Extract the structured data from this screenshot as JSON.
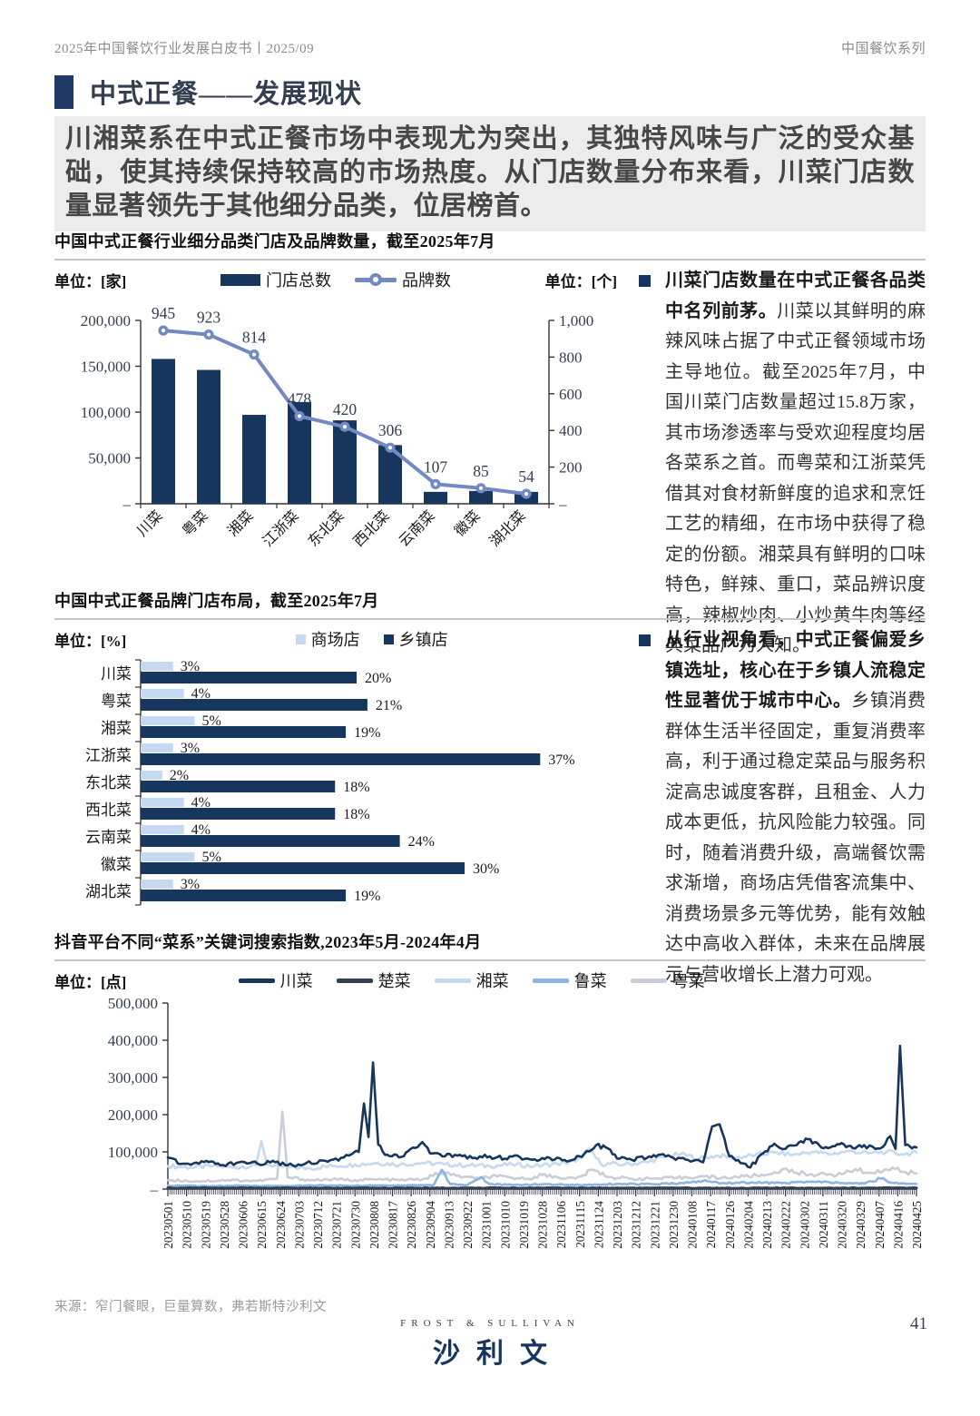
{
  "header": {
    "doc_title": "2025年中国餐饮行业发展白皮书丨2025/09",
    "series": "中国餐饮系列"
  },
  "section": {
    "title": "中式正餐——发展现状",
    "highlight": "川湘菜系在中式正餐市场中表现尤为突出，其独特风味与广泛的受众基础，使其持续保持较高的市场热度。从门店数量分布来看，川菜门店数量显著领先于其他细分品类，位居榜首。"
  },
  "bullets": [
    {
      "bold": "川菜门店数量在中式正餐各品类中名列前茅。",
      "body": "川菜以其鲜明的麻辣风味占据了中式正餐领域市场主导地位。截至2025年7月，中国川菜门店数量超过15.8万家，其市场渗透率与受欢迎程度均居各菜系之首。而粤菜和江浙菜凭借其对食材新鲜度的追求和烹饪工艺的精细，在市场中获得了稳定的份额。湘菜具有鲜明的口味特色，鲜辣、重口，菜品辨识度高，辣椒炒肉、小炒黄牛肉等经典菜品广为人知。"
    },
    {
      "bold": "从行业视角看，中式正餐偏爱乡镇选址，核心在于乡镇人流稳定性显著优于城市中心。",
      "body": "乡镇消费群体生活半径固定，重复消费率高，利于通过稳定菜品与服务积淀高忠诚度客群，且租金、人力成本更低，抗风险能力较强。同时，随着消费升级，高端餐饮需求渐增，商场店凭借客流集中、消费场景多元等优势，能有效触达中高收入群体，未来在品牌展示与营收增长上潜力可观。"
    }
  ],
  "chart_data": [
    {
      "type": "bar",
      "title": "中国中式正餐行业细分品类门店及品牌数量，截至2025年7月",
      "unit_left": "单位：[家]",
      "unit_right": "单位：[个]",
      "legend": [
        {
          "label": "门店总数",
          "color": "#17365d"
        },
        {
          "label": "品牌数",
          "color": "#7289c4"
        }
      ],
      "categories": [
        "川菜",
        "粤菜",
        "湘菜",
        "江浙菜",
        "东北菜",
        "西北菜",
        "云南菜",
        "徽菜",
        "湖北菜"
      ],
      "series": [
        {
          "name": "门店总数",
          "axis": "left",
          "values": [
            158000,
            146000,
            97000,
            111000,
            91000,
            64000,
            13000,
            14000,
            13000
          ]
        },
        {
          "name": "品牌数",
          "axis": "right",
          "values": [
            945,
            923,
            814,
            478,
            420,
            306,
            107,
            85,
            54
          ]
        }
      ],
      "y_left": {
        "min": 0,
        "max": 200000,
        "tick_labels": [
          "–",
          "50,000",
          "100,000",
          "150,000",
          "200,000"
        ]
      },
      "y_right": {
        "min": 0,
        "max": 1000,
        "tick_labels": [
          "–",
          "200",
          "400",
          "600",
          "800",
          "1,000"
        ]
      }
    },
    {
      "type": "bar",
      "title": "中国中式正餐品牌门店布局，截至2025年7月",
      "unit": "单位：[%]",
      "legend": [
        {
          "label": "商场店",
          "color": "#c5d9f1"
        },
        {
          "label": "乡镇店",
          "color": "#17365d"
        }
      ],
      "categories": [
        "川菜",
        "粤菜",
        "湘菜",
        "江浙菜",
        "东北菜",
        "西北菜",
        "云南菜",
        "徽菜",
        "湖北菜"
      ],
      "series": [
        {
          "name": "商场店",
          "values": [
            3,
            4,
            5,
            3,
            2,
            4,
            4,
            5,
            3
          ]
        },
        {
          "name": "乡镇店",
          "values": [
            20,
            21,
            19,
            37,
            18,
            18,
            24,
            30,
            19
          ]
        }
      ],
      "xlim": [
        0,
        40
      ]
    },
    {
      "type": "line",
      "title": "抖音平台不同“菜系”关键词搜索指数,2023年5月-2024年4月",
      "unit": "单位：[点]",
      "ylim": [
        0,
        500000
      ],
      "y_tick_labels": [
        "–",
        "100,000",
        "200,000",
        "300,000",
        "400,000",
        "500,000"
      ],
      "x_labels": [
        "20230501",
        "20230510",
        "20230519",
        "20230528",
        "20230606",
        "20230615",
        "20230624",
        "20230703",
        "20230712",
        "20230721",
        "20230730",
        "20230808",
        "20230817",
        "20230826",
        "20230904",
        "20230913",
        "20230922",
        "20231001",
        "20231010",
        "20231019",
        "20231028",
        "20231106",
        "20231115",
        "20231124",
        "20231203",
        "20231212",
        "20231221",
        "20231230",
        "20240108",
        "20240117",
        "20240126",
        "20240204",
        "20240213",
        "20240222",
        "20240302",
        "20240311",
        "20240320",
        "20240329",
        "20240407",
        "20240416",
        "20240425"
      ],
      "legend": [
        {
          "label": "川菜",
          "color": "#17365d"
        },
        {
          "label": "楚菜",
          "color": "#333f50"
        },
        {
          "label": "湘菜",
          "color": "#c5d9f1"
        },
        {
          "label": "鲁菜",
          "color": "#8db4e2"
        },
        {
          "label": "粤菜",
          "color": "#c9ced6"
        }
      ],
      "series": [
        {
          "name": "川菜",
          "color": "#17365d",
          "width": 2.6,
          "z": 5,
          "points": [
            [
              0,
              85000
            ],
            [
              0.02,
              68000
            ],
            [
              0.045,
              75000
            ],
            [
              0.07,
              64000
            ],
            [
              0.095,
              72000
            ],
            [
              0.12,
              68000
            ],
            [
              0.14,
              76000
            ],
            [
              0.16,
              64000
            ],
            [
              0.185,
              70000
            ],
            [
              0.21,
              76000
            ],
            [
              0.235,
              85000
            ],
            [
              0.255,
              100000
            ],
            [
              0.262,
              230000
            ],
            [
              0.268,
              140000
            ],
            [
              0.274,
              340000
            ],
            [
              0.281,
              120000
            ],
            [
              0.29,
              92000
            ],
            [
              0.315,
              88000
            ],
            [
              0.34,
              126000
            ],
            [
              0.35,
              96000
            ],
            [
              0.37,
              88000
            ],
            [
              0.39,
              92000
            ],
            [
              0.41,
              84000
            ],
            [
              0.43,
              88000
            ],
            [
              0.45,
              82000
            ],
            [
              0.47,
              86000
            ],
            [
              0.49,
              80000
            ],
            [
              0.51,
              84000
            ],
            [
              0.53,
              78000
            ],
            [
              0.55,
              88000
            ],
            [
              0.572,
              118000
            ],
            [
              0.585,
              112000
            ],
            [
              0.6,
              82000
            ],
            [
              0.62,
              78000
            ],
            [
              0.64,
              84000
            ],
            [
              0.655,
              92000
            ],
            [
              0.675,
              84000
            ],
            [
              0.695,
              78000
            ],
            [
              0.715,
              72000
            ],
            [
              0.727,
              168000
            ],
            [
              0.737,
              174000
            ],
            [
              0.75,
              88000
            ],
            [
              0.765,
              70000
            ],
            [
              0.778,
              58000
            ],
            [
              0.795,
              96000
            ],
            [
              0.81,
              122000
            ],
            [
              0.825,
              108000
            ],
            [
              0.84,
              118000
            ],
            [
              0.855,
              134000
            ],
            [
              0.87,
              118000
            ],
            [
              0.885,
              112000
            ],
            [
              0.9,
              124000
            ],
            [
              0.915,
              110000
            ],
            [
              0.93,
              118000
            ],
            [
              0.945,
              108000
            ],
            [
              0.958,
              120000
            ],
            [
              0.965,
              142000
            ],
            [
              0.972,
              108000
            ],
            [
              0.978,
              385000
            ],
            [
              0.985,
              118000
            ],
            [
              1,
              112000
            ]
          ]
        },
        {
          "name": "楚菜",
          "color": "#333f50",
          "width": 3,
          "z": 4,
          "points": [
            [
              0,
              3000
            ],
            [
              0.25,
              2600
            ],
            [
              0.5,
              3000
            ],
            [
              0.75,
              2600
            ],
            [
              1,
              3000
            ]
          ]
        },
        {
          "name": "湘菜",
          "color": "#c5d9f1",
          "width": 2.6,
          "z": 1,
          "points": [
            [
              0,
              62000
            ],
            [
              0.03,
              58000
            ],
            [
              0.06,
              62000
            ],
            [
              0.09,
              58000
            ],
            [
              0.118,
              64000
            ],
            [
              0.125,
              128000
            ],
            [
              0.133,
              66000
            ],
            [
              0.16,
              58000
            ],
            [
              0.19,
              56000
            ],
            [
              0.22,
              62000
            ],
            [
              0.25,
              66000
            ],
            [
              0.28,
              70000
            ],
            [
              0.31,
              66000
            ],
            [
              0.34,
              70000
            ],
            [
              0.37,
              66000
            ],
            [
              0.4,
              64000
            ],
            [
              0.43,
              62000
            ],
            [
              0.46,
              66000
            ],
            [
              0.49,
              62000
            ],
            [
              0.52,
              68000
            ],
            [
              0.545,
              74000
            ],
            [
              0.563,
              108000
            ],
            [
              0.578,
              68000
            ],
            [
              0.61,
              66000
            ],
            [
              0.64,
              72000
            ],
            [
              0.665,
              88000
            ],
            [
              0.685,
              94000
            ],
            [
              0.71,
              82000
            ],
            [
              0.735,
              90000
            ],
            [
              0.76,
              84000
            ],
            [
              0.785,
              92000
            ],
            [
              0.81,
              98000
            ],
            [
              0.835,
              92000
            ],
            [
              0.86,
              100000
            ],
            [
              0.885,
              94000
            ],
            [
              0.91,
              102000
            ],
            [
              0.935,
              96000
            ],
            [
              0.96,
              100000
            ],
            [
              0.98,
              94000
            ],
            [
              1,
              98000
            ]
          ]
        },
        {
          "name": "鲁菜",
          "color": "#8db4e2",
          "width": 2.6,
          "z": 3,
          "points": [
            [
              0,
              10000
            ],
            [
              0.05,
              8000
            ],
            [
              0.1,
              9000
            ],
            [
              0.15,
              8000
            ],
            [
              0.2,
              10000
            ],
            [
              0.25,
              9000
            ],
            [
              0.3,
              10000
            ],
            [
              0.355,
              11000
            ],
            [
              0.366,
              52000
            ],
            [
              0.377,
              14000
            ],
            [
              0.4,
              11000
            ],
            [
              0.418,
              32000
            ],
            [
              0.43,
              13000
            ],
            [
              0.46,
              11000
            ],
            [
              0.5,
              13000
            ],
            [
              0.55,
              11000
            ],
            [
              0.6,
              14000
            ],
            [
              0.65,
              13000
            ],
            [
              0.69,
              16000
            ],
            [
              0.715,
              22000
            ],
            [
              0.74,
              16000
            ],
            [
              0.78,
              18000
            ],
            [
              0.82,
              16000
            ],
            [
              0.86,
              20000
            ],
            [
              0.9,
              16000
            ],
            [
              0.93,
              15000
            ],
            [
              0.952,
              28000
            ],
            [
              0.97,
              16000
            ],
            [
              1,
              14000
            ]
          ]
        },
        {
          "name": "粤菜",
          "color": "#c9ced6",
          "width": 2.6,
          "z": 2,
          "points": [
            [
              0,
              24000
            ],
            [
              0.04,
              21000
            ],
            [
              0.08,
              24000
            ],
            [
              0.12,
              22000
            ],
            [
              0.146,
              28000
            ],
            [
              0.153,
              208000
            ],
            [
              0.16,
              32000
            ],
            [
              0.19,
              24000
            ],
            [
              0.22,
              26000
            ],
            [
              0.25,
              24000
            ],
            [
              0.28,
              26000
            ],
            [
              0.31,
              24000
            ],
            [
              0.34,
              26000
            ],
            [
              0.365,
              44000
            ],
            [
              0.385,
              36000
            ],
            [
              0.41,
              28000
            ],
            [
              0.44,
              34000
            ],
            [
              0.46,
              30000
            ],
            [
              0.48,
              28000
            ],
            [
              0.5,
              38000
            ],
            [
              0.52,
              32000
            ],
            [
              0.545,
              28000
            ],
            [
              0.568,
              52000
            ],
            [
              0.59,
              32000
            ],
            [
              0.62,
              28000
            ],
            [
              0.65,
              28000
            ],
            [
              0.68,
              30000
            ],
            [
              0.71,
              34000
            ],
            [
              0.74,
              30000
            ],
            [
              0.77,
              34000
            ],
            [
              0.8,
              38000
            ],
            [
              0.82,
              52000
            ],
            [
              0.84,
              44000
            ],
            [
              0.86,
              40000
            ],
            [
              0.88,
              38000
            ],
            [
              0.9,
              40000
            ],
            [
              0.918,
              54000
            ],
            [
              0.935,
              44000
            ],
            [
              0.955,
              48000
            ],
            [
              0.968,
              58000
            ],
            [
              0.982,
              46000
            ],
            [
              1,
              42000
            ]
          ]
        }
      ]
    }
  ],
  "footer": {
    "source": "来源：窄门餐眼，巨量算数，弗若斯特沙利文",
    "logo_top": "FROST  &  SULLIVAN",
    "logo_main": "沙利文",
    "page_number": "41"
  },
  "colors": {
    "navy": "#17365d",
    "line_blue": "#7289c4",
    "light_blue": "#c5d9f1",
    "medium_blue": "#8db4e2",
    "gray_line": "#c9ced6",
    "highlight_bg": "#ececec"
  }
}
